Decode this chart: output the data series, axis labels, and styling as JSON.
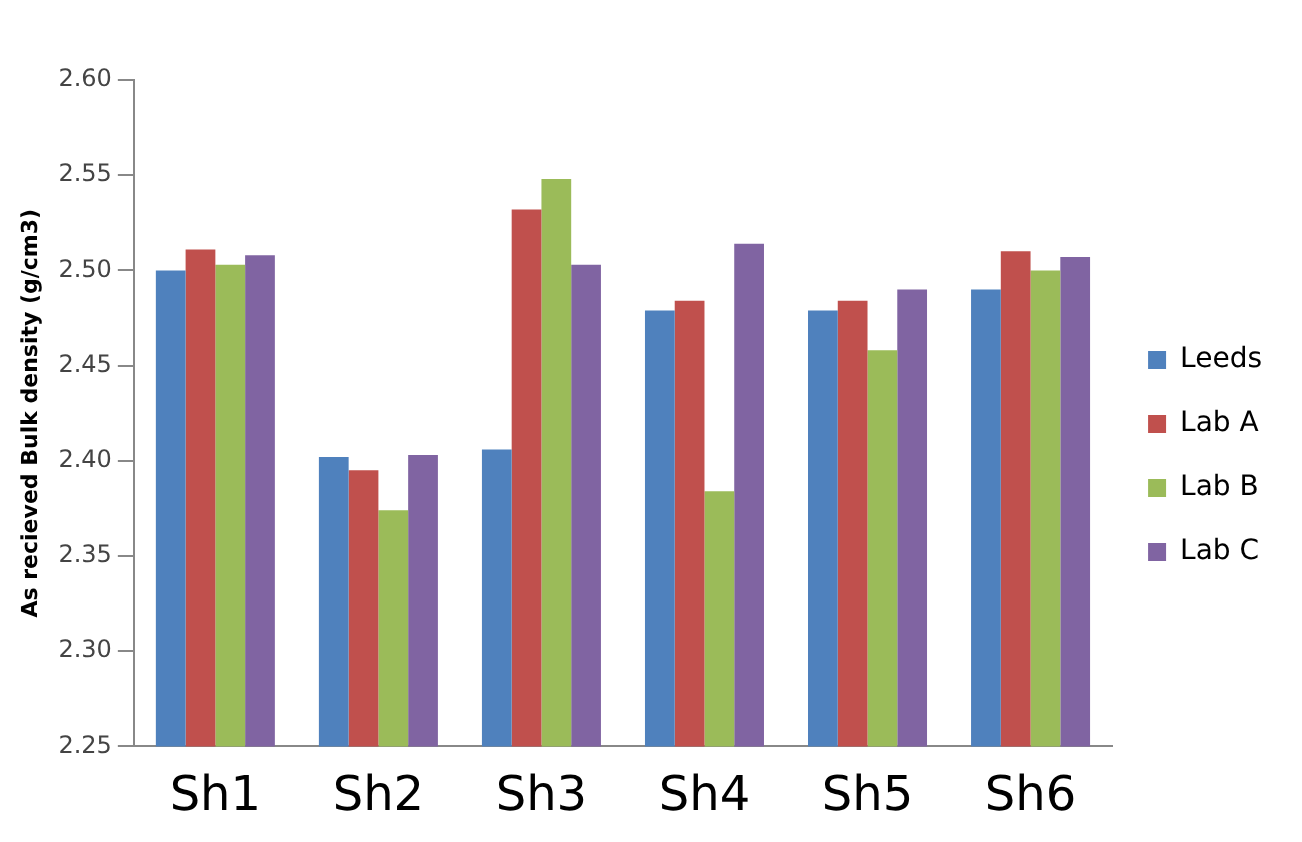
{
  "chart_data": {
    "type": "bar",
    "ylabel": "As recieved Bulk density (g/cm3)",
    "categories": [
      "Sh1",
      "Sh2",
      "Sh3",
      "Sh4",
      "Sh5",
      "Sh6"
    ],
    "series": [
      {
        "name": "Leeds",
        "color": "#4f81bd",
        "values": [
          2.5,
          2.402,
          2.406,
          2.479,
          2.479,
          2.49
        ]
      },
      {
        "name": "Lab A",
        "color": "#c0504d",
        "values": [
          2.511,
          2.395,
          2.532,
          2.484,
          2.484,
          2.51
        ]
      },
      {
        "name": "Lab B",
        "color": "#9bbb59",
        "values": [
          2.503,
          2.374,
          2.548,
          2.384,
          2.458,
          2.5
        ]
      },
      {
        "name": "Lab C",
        "color": "#8064a2",
        "values": [
          2.508,
          2.403,
          2.503,
          2.514,
          2.49,
          2.507
        ]
      }
    ],
    "ylim": [
      2.25,
      2.6
    ],
    "yticks": [
      {
        "value": 2.25,
        "label": "2.25"
      },
      {
        "value": 2.3,
        "label": "2.30"
      },
      {
        "value": 2.35,
        "label": "2.35"
      },
      {
        "value": 2.4,
        "label": "2.40"
      },
      {
        "value": 2.45,
        "label": "2.45"
      },
      {
        "value": 2.5,
        "label": "2.50"
      },
      {
        "value": 2.55,
        "label": "2.55"
      },
      {
        "value": 2.6,
        "label": "2.60"
      }
    ],
    "grid": false,
    "legend": "right"
  }
}
